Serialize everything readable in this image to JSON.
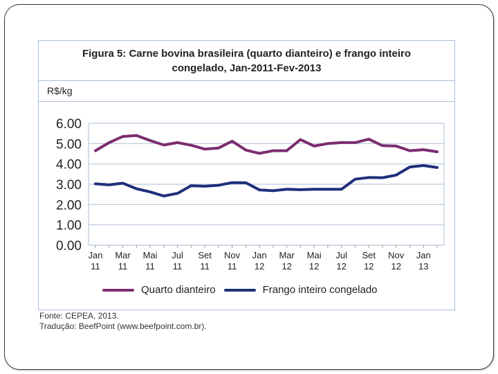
{
  "figure": {
    "title_line1": "Figura 5: Carne bovina brasileira (quarto dianteiro) e frango inteiro",
    "title_line2": "congelado, Jan-2011-Fev-2013",
    "unit_label": "R$/kg"
  },
  "source": {
    "line1": "Fonte: CEPEA, 2013.",
    "line2": "Tradução: BeefPoint (www.beefpoint.com.br)."
  },
  "colors": {
    "quarto": "#7b2d6e",
    "frango": "#1f2f7a",
    "grid": "#b7c7d9"
  },
  "chart_data": {
    "type": "line",
    "title": "",
    "ylabel": "R$/kg",
    "ylim": [
      0,
      6
    ],
    "yticks": [
      "0.00",
      "1.00",
      "2.00",
      "3.00",
      "4.00",
      "5.00",
      "6.00"
    ],
    "xticks": [
      {
        "index": 0,
        "month": "Jan",
        "year": "11"
      },
      {
        "index": 2,
        "month": "Mar",
        "year": "11"
      },
      {
        "index": 4,
        "month": "Mai",
        "year": "11"
      },
      {
        "index": 6,
        "month": "Jul",
        "year": "11"
      },
      {
        "index": 8,
        "month": "Set",
        "year": "11"
      },
      {
        "index": 10,
        "month": "Nov",
        "year": "11"
      },
      {
        "index": 12,
        "month": "Jan",
        "year": "12"
      },
      {
        "index": 14,
        "month": "Mar",
        "year": "12"
      },
      {
        "index": 16,
        "month": "Mai",
        "year": "12"
      },
      {
        "index": 18,
        "month": "Jul",
        "year": "12"
      },
      {
        "index": 20,
        "month": "Set",
        "year": "12"
      },
      {
        "index": 22,
        "month": "Nov",
        "year": "12"
      },
      {
        "index": 24,
        "month": "Jan",
        "year": "13"
      }
    ],
    "grid": true,
    "legend_position": "bottom",
    "series": [
      {
        "name": "Quarto dianteiro",
        "color_key": "quarto",
        "values": [
          4.65,
          5.05,
          5.35,
          5.4,
          5.15,
          4.93,
          5.05,
          4.92,
          4.73,
          4.78,
          5.12,
          4.68,
          4.52,
          4.65,
          4.65,
          5.2,
          4.88,
          5.0,
          5.05,
          5.05,
          5.22,
          4.9,
          4.88,
          4.65,
          4.7,
          4.6
        ]
      },
      {
        "name": "Frango inteiro congelado",
        "color_key": "frango",
        "values": [
          3.02,
          2.97,
          3.05,
          2.78,
          2.62,
          2.42,
          2.55,
          2.93,
          2.9,
          2.95,
          3.08,
          3.07,
          2.72,
          2.68,
          2.75,
          2.73,
          2.75,
          2.75,
          2.75,
          3.25,
          3.33,
          3.32,
          3.45,
          3.85,
          3.92,
          3.82
        ]
      }
    ]
  }
}
